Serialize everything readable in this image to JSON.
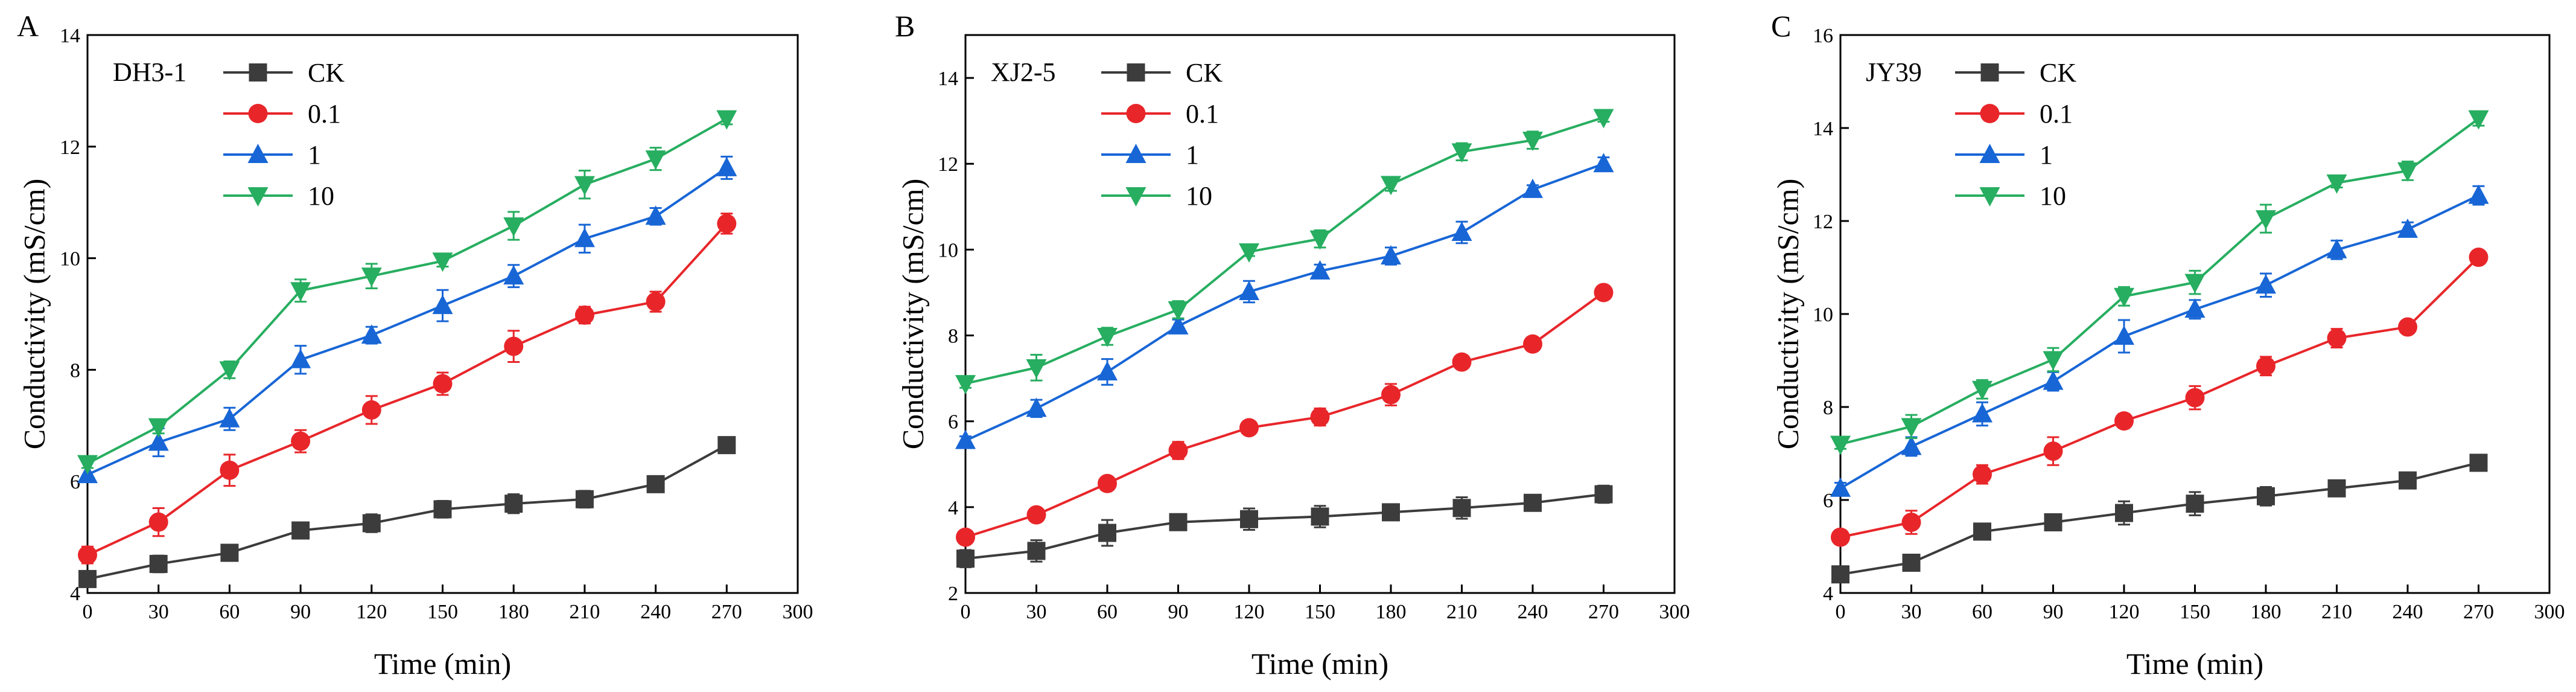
{
  "colors": {
    "CK": "#3c3c3c",
    "0.1": "#e8262a",
    "1": "#1866d6",
    "10": "#27ae60"
  },
  "chart_data": [
    {
      "type": "line",
      "panel": "A",
      "legend_title": "DH3-1",
      "xlabel": "Time (min)",
      "ylabel": "Conductivity (mS/cm)",
      "xlim": [
        0,
        300
      ],
      "ylim": [
        4,
        14
      ],
      "xticks": [
        0,
        30,
        60,
        90,
        120,
        150,
        180,
        210,
        240,
        270,
        300
      ],
      "yticks": [
        4,
        6,
        8,
        10,
        12,
        14
      ],
      "legend_position": "top-left",
      "x": [
        0,
        30,
        60,
        90,
        120,
        150,
        180,
        210,
        240,
        270
      ],
      "series": [
        {
          "name": "CK",
          "marker": "square",
          "values": [
            4.25,
            4.52,
            4.72,
            5.12,
            5.25,
            5.5,
            5.6,
            5.68,
            5.95,
            6.65
          ],
          "errors": [
            0.12,
            0.15,
            0.14,
            0.13,
            0.16,
            0.15,
            0.17,
            0.15,
            0.06,
            0.06
          ]
        },
        {
          "name": "0.1",
          "marker": "circle",
          "values": [
            4.68,
            5.27,
            6.2,
            6.72,
            7.28,
            7.75,
            8.42,
            8.98,
            9.22,
            10.62
          ],
          "errors": [
            0.15,
            0.25,
            0.28,
            0.2,
            0.25,
            0.2,
            0.28,
            0.15,
            0.18,
            0.18
          ]
        },
        {
          "name": "1",
          "marker": "triangle-up",
          "values": [
            6.12,
            6.7,
            7.12,
            8.18,
            8.62,
            9.15,
            9.68,
            10.35,
            10.75,
            11.62
          ],
          "errors": [
            0.12,
            0.25,
            0.2,
            0.25,
            0.15,
            0.28,
            0.2,
            0.25,
            0.15,
            0.2
          ]
        },
        {
          "name": "10",
          "marker": "triangle-down",
          "values": [
            6.32,
            6.98,
            8.0,
            9.42,
            9.68,
            9.95,
            10.58,
            11.32,
            11.78,
            12.5
          ],
          "errors": [
            0.08,
            0.12,
            0.15,
            0.2,
            0.22,
            0.1,
            0.25,
            0.25,
            0.2,
            0.1
          ]
        }
      ]
    },
    {
      "type": "line",
      "panel": "B",
      "legend_title": "XJ2-5",
      "xlabel": "Time (min)",
      "ylabel": "Conductivity (mS/cm)",
      "xlim": [
        0,
        300
      ],
      "ylim": [
        2,
        15
      ],
      "xticks": [
        0,
        30,
        60,
        90,
        120,
        150,
        180,
        210,
        240,
        270,
        300
      ],
      "yticks": [
        2,
        4,
        6,
        8,
        10,
        12,
        14
      ],
      "legend_position": "top-left",
      "x": [
        0,
        30,
        60,
        90,
        120,
        150,
        180,
        210,
        240,
        270
      ],
      "series": [
        {
          "name": "CK",
          "marker": "square",
          "values": [
            2.8,
            2.98,
            3.4,
            3.65,
            3.72,
            3.78,
            3.88,
            3.98,
            4.1,
            4.3
          ],
          "errors": [
            0.2,
            0.25,
            0.3,
            0.1,
            0.25,
            0.25,
            0.15,
            0.25,
            0.1,
            0.2
          ]
        },
        {
          "name": "0.1",
          "marker": "circle",
          "values": [
            3.3,
            3.82,
            4.55,
            5.32,
            5.85,
            6.1,
            6.62,
            7.38,
            7.8,
            9.0
          ],
          "errors": [
            0.1,
            0.15,
            0.1,
            0.2,
            0.15,
            0.2,
            0.25,
            0.15,
            0.15,
            0.1
          ]
        },
        {
          "name": "1",
          "marker": "triangle-up",
          "values": [
            5.55,
            6.3,
            7.15,
            8.22,
            9.02,
            9.5,
            9.85,
            10.4,
            11.4,
            12.0
          ],
          "errors": [
            0.1,
            0.2,
            0.3,
            0.15,
            0.25,
            0.15,
            0.2,
            0.25,
            0.1,
            0.15
          ]
        },
        {
          "name": "10",
          "marker": "triangle-down",
          "values": [
            6.88,
            7.25,
            7.98,
            8.6,
            9.95,
            10.25,
            11.52,
            12.28,
            12.55,
            13.08
          ],
          "errors": [
            0.1,
            0.3,
            0.2,
            0.2,
            0.1,
            0.2,
            0.15,
            0.2,
            0.2,
            0.1
          ]
        }
      ]
    },
    {
      "type": "line",
      "panel": "C",
      "legend_title": "JY39",
      "xlabel": "Time (min)",
      "ylabel": "Conductivity (mS/cm)",
      "xlim": [
        0,
        300
      ],
      "ylim": [
        4,
        16
      ],
      "xticks": [
        0,
        30,
        60,
        90,
        120,
        150,
        180,
        210,
        240,
        270,
        300
      ],
      "yticks": [
        4,
        6,
        8,
        10,
        12,
        14,
        16
      ],
      "legend_position": "top-left",
      "x": [
        0,
        30,
        60,
        90,
        120,
        150,
        180,
        210,
        240,
        270
      ],
      "series": [
        {
          "name": "CK",
          "marker": "square",
          "values": [
            4.4,
            4.65,
            5.32,
            5.52,
            5.72,
            5.92,
            6.08,
            6.25,
            6.42,
            6.8
          ],
          "errors": [
            0.15,
            0.12,
            0.15,
            0.15,
            0.25,
            0.25,
            0.2,
            0.15,
            0.15,
            0.15
          ]
        },
        {
          "name": "0.1",
          "marker": "circle",
          "values": [
            5.2,
            5.52,
            6.55,
            7.05,
            7.7,
            8.2,
            8.88,
            9.48,
            9.72,
            11.22
          ],
          "errors": [
            0.15,
            0.25,
            0.2,
            0.3,
            0.15,
            0.25,
            0.2,
            0.2,
            0.1,
            0.1
          ]
        },
        {
          "name": "1",
          "marker": "triangle-up",
          "values": [
            6.25,
            7.15,
            7.85,
            8.55,
            9.52,
            10.1,
            10.62,
            11.38,
            11.82,
            12.55
          ],
          "errors": [
            0.12,
            0.2,
            0.25,
            0.2,
            0.35,
            0.2,
            0.25,
            0.2,
            0.15,
            0.2
          ]
        },
        {
          "name": "10",
          "marker": "triangle-down",
          "values": [
            7.2,
            7.58,
            8.38,
            9.02,
            10.38,
            10.68,
            12.05,
            12.82,
            13.08,
            14.2
          ],
          "errors": [
            0.1,
            0.25,
            0.2,
            0.25,
            0.2,
            0.25,
            0.3,
            0.1,
            0.2,
            0.15
          ]
        }
      ]
    }
  ]
}
